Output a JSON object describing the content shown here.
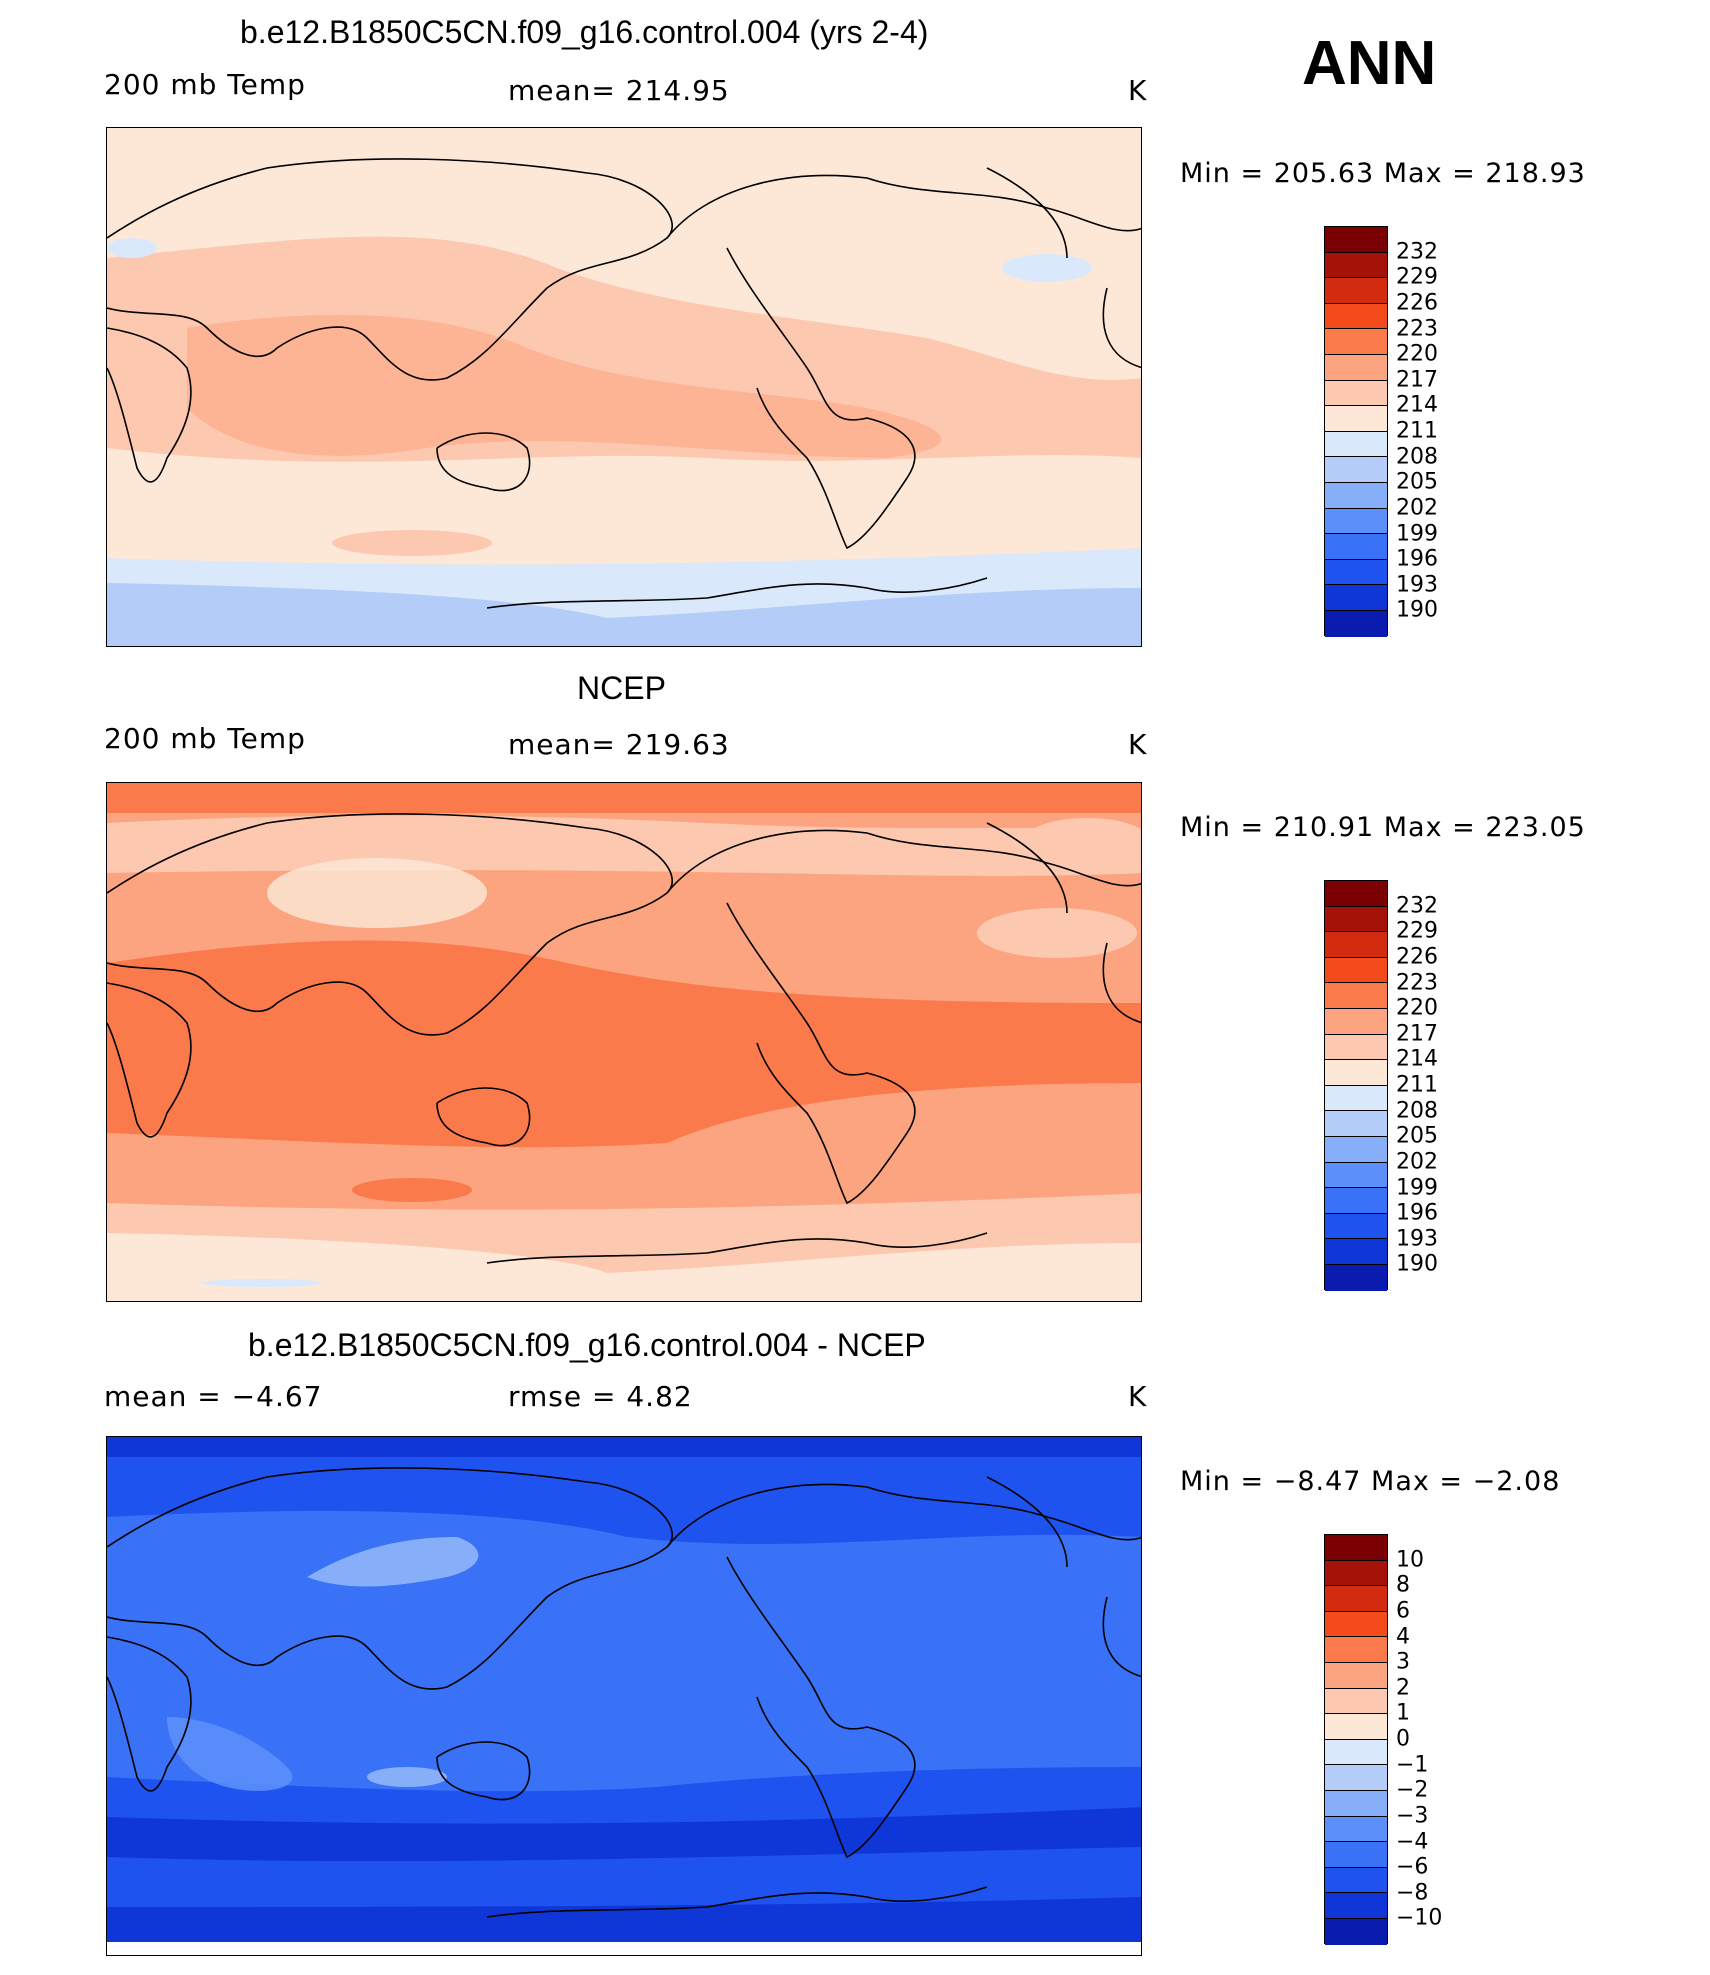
{
  "season": "ANN",
  "colors": {
    "scale": [
      "#00007f",
      "#0a1cb0",
      "#0f37d8",
      "#1f53f0",
      "#3a72f7",
      "#5b8ffa",
      "#87aff9",
      "#b3ccf8",
      "#d9e8fb",
      "#fde8d7",
      "#fcc8b0",
      "#fba47f",
      "#fb7a4c",
      "#f44b1c",
      "#d32b10",
      "#a51207",
      "#7a0003"
    ]
  },
  "panels": [
    {
      "id": "model",
      "title": "b.e12.B1850C5CN.f09_g16.control.004 (yrs 2-4)",
      "left_label": "200 mb Temp",
      "center_label": "mean=  214.95",
      "units": "K",
      "min_max": "Min  =  205.63  Max  =  218.93",
      "colorbar_levels": [
        "232",
        "229",
        "226",
        "223",
        "220",
        "217",
        "214",
        "211",
        "208",
        "205",
        "202",
        "199",
        "196",
        "193",
        "190"
      ]
    },
    {
      "id": "obs",
      "title": "NCEP",
      "left_label": "200 mb Temp",
      "center_label": "mean=  219.63",
      "units": "K",
      "min_max": "Min  =  210.91  Max  =  223.05",
      "colorbar_levels": [
        "232",
        "229",
        "226",
        "223",
        "220",
        "217",
        "214",
        "211",
        "208",
        "205",
        "202",
        "199",
        "196",
        "193",
        "190"
      ]
    },
    {
      "id": "diff",
      "title": "b.e12.B1850C5CN.f09_g16.control.004 - NCEP",
      "left_label": "mean  =    −4.67",
      "center_label": "rmse  =     4.82",
      "units": "K",
      "min_max": "Min  =    −8.47  Max  =    −2.08",
      "colorbar_levels": [
        "10",
        "8",
        "6",
        "4",
        "3",
        "2",
        "1",
        "0",
        "−1",
        "−2",
        "−3",
        "−4",
        "−6",
        "−8",
        "−10"
      ]
    }
  ]
}
